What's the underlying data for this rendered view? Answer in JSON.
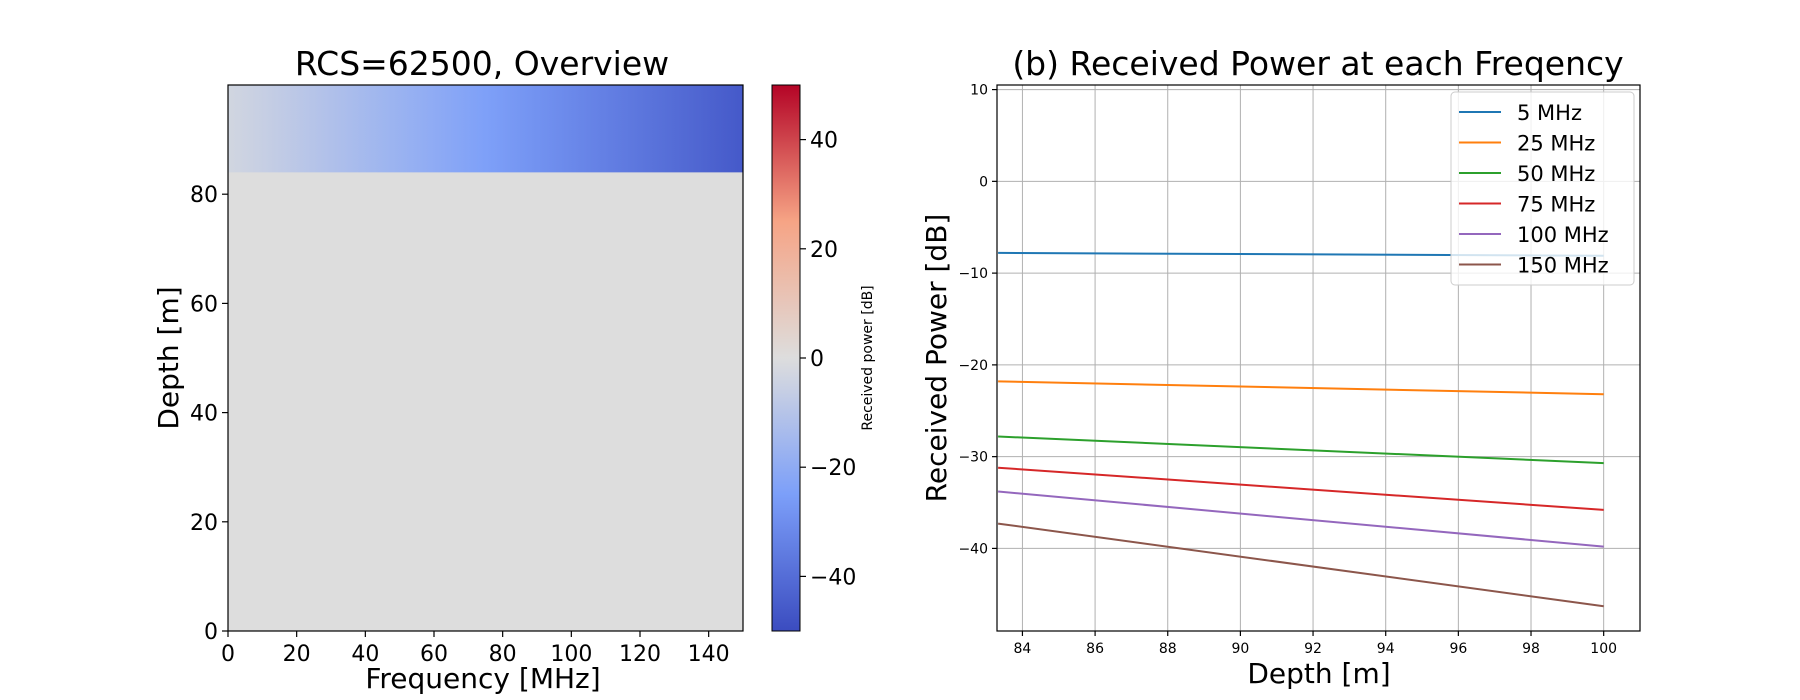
{
  "chart_data": [
    {
      "type": "heatmap",
      "title": "RCS=62500, Overview",
      "xlabel": "Frequency [MHz]",
      "ylabel": "Depth [m]",
      "xlim": [
        0,
        150
      ],
      "ylim": [
        0,
        100
      ],
      "xticks": [
        0,
        20,
        40,
        60,
        80,
        100,
        120,
        140
      ],
      "yticks": [
        0,
        20,
        40,
        60,
        80
      ],
      "colormap": "coolwarm",
      "colorbar": {
        "label": "Received power [dB]",
        "range": [
          -50,
          50
        ],
        "ticks": [
          -40,
          -20,
          0,
          20,
          40
        ]
      },
      "region": {
        "depth_range": [
          84,
          100
        ],
        "freq_range": [
          0,
          150
        ],
        "value_at_low_freq_dB": -3,
        "value_at_high_freq_dB": -46,
        "fill_value_elsewhere_dB": 0
      }
    },
    {
      "type": "line",
      "title": "(b) Received Power at each Freqency",
      "xlabel": "Depth [m]",
      "ylabel": "Received Power [dB]",
      "xlim": [
        83.3,
        101
      ],
      "ylim": [
        -49,
        10.5
      ],
      "xticks": [
        84,
        86,
        88,
        90,
        92,
        94,
        96,
        98,
        100
      ],
      "yticks": [
        10,
        0,
        -10,
        -20,
        -30,
        -40
      ],
      "grid": true,
      "legend_position": "top-right",
      "x": [
        83.33,
        100
      ],
      "series": [
        {
          "name": "5 MHz",
          "color": "#1f77b4",
          "values": [
            -7.8,
            -8.1
          ]
        },
        {
          "name": "25 MHz",
          "color": "#ff7f0e",
          "values": [
            -21.8,
            -23.2
          ]
        },
        {
          "name": "50 MHz",
          "color": "#2ca02c",
          "values": [
            -27.8,
            -30.7
          ]
        },
        {
          "name": "75 MHz",
          "color": "#d62728",
          "values": [
            -31.2,
            -35.8
          ]
        },
        {
          "name": "100 MHz",
          "color": "#9467bd",
          "values": [
            -33.8,
            -39.8
          ]
        },
        {
          "name": "150 MHz",
          "color": "#8c564b",
          "values": [
            -37.3,
            -46.3
          ]
        }
      ]
    }
  ]
}
